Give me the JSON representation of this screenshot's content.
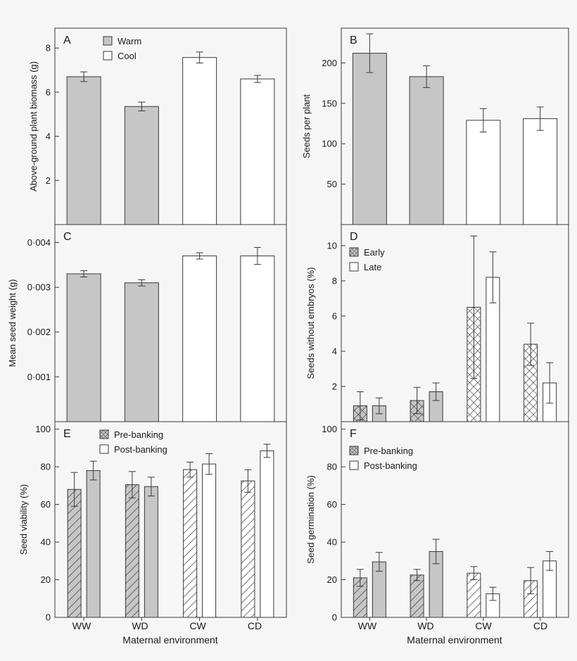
{
  "colors": {
    "gray": "#c6c6c6",
    "white": "#ffffff",
    "stroke": "#3a3a3a",
    "background": "#f6f6f6"
  },
  "x_axis": {
    "categories": [
      "WW",
      "WD",
      "CW",
      "CD"
    ],
    "label": "Maternal environment"
  },
  "chart_data": [
    {
      "id": "A",
      "type": "bar",
      "letter": "A",
      "ylabel": "Above-ground plant biomass (g)",
      "ylim": [
        0,
        8.9
      ],
      "yticks": [
        2,
        4,
        6,
        8
      ],
      "ytick_labels": [
        "2",
        "4",
        "6",
        "8"
      ],
      "legend": [
        {
          "label": "Warm",
          "style": "gray"
        },
        {
          "label": "Cool",
          "style": "white"
        }
      ],
      "categories": [
        "WW",
        "WD",
        "CW",
        "CD"
      ],
      "bars": [
        {
          "category": "WW",
          "value": 6.7,
          "err": 0.22,
          "style": "gray"
        },
        {
          "category": "WD",
          "value": 5.35,
          "err": 0.2,
          "style": "gray"
        },
        {
          "category": "CW",
          "value": 7.57,
          "err": 0.25,
          "style": "white"
        },
        {
          "category": "CD",
          "value": 6.6,
          "err": 0.16,
          "style": "white"
        }
      ]
    },
    {
      "id": "B",
      "type": "bar",
      "letter": "B",
      "ylabel": "Seeds per plant",
      "ylim": [
        0,
        243
      ],
      "yticks": [
        50,
        100,
        150,
        200
      ],
      "ytick_labels": [
        "50",
        "100",
        "150",
        "200"
      ],
      "legend": [],
      "categories": [
        "WW",
        "WD",
        "CW",
        "CD"
      ],
      "bars": [
        {
          "category": "WW",
          "value": 212,
          "err": 24,
          "style": "gray"
        },
        {
          "category": "WD",
          "value": 183,
          "err": 13.5,
          "style": "gray"
        },
        {
          "category": "CW",
          "value": 129,
          "err": 14.5,
          "style": "white"
        },
        {
          "category": "CD",
          "value": 131,
          "err": 14.5,
          "style": "white"
        }
      ]
    },
    {
      "id": "C",
      "type": "bar",
      "letter": "C",
      "ylabel": "Mean seed weight (g)",
      "ylim": [
        0,
        0.0044
      ],
      "yticks": [
        0.001,
        0.002,
        0.003,
        0.004
      ],
      "ytick_labels": [
        "0·001",
        "0·002",
        "0·003",
        "0·004"
      ],
      "legend": [],
      "categories": [
        "WW",
        "WD",
        "CW",
        "CD"
      ],
      "bars": [
        {
          "category": "WW",
          "value": 0.0033,
          "err": 7e-05,
          "style": "gray"
        },
        {
          "category": "WD",
          "value": 0.0031,
          "err": 7e-05,
          "style": "gray"
        },
        {
          "category": "CW",
          "value": 0.0037,
          "err": 7e-05,
          "style": "white"
        },
        {
          "category": "CD",
          "value": 0.0037,
          "err": 0.00019,
          "style": "white"
        }
      ]
    },
    {
      "id": "D",
      "type": "bar",
      "letter": "D",
      "ylabel": "Seeds without embryos (%)",
      "ylim": [
        0,
        11.2
      ],
      "yticks": [
        2,
        4,
        6,
        8,
        10
      ],
      "ytick_labels": [
        "2",
        "4",
        "6",
        "8",
        "10"
      ],
      "legend": [
        {
          "label": "Early",
          "style": "cross"
        },
        {
          "label": "Late",
          "style": "white"
        }
      ],
      "categories": [
        "WW",
        "WD",
        "CW",
        "CD"
      ],
      "bars": [
        {
          "category": "WW",
          "value": 0.9,
          "err": 0.8,
          "style": "cross-gray"
        },
        {
          "category": "WW",
          "value": 0.9,
          "err": 0.45,
          "style": "gray"
        },
        {
          "category": "WD",
          "value": 1.2,
          "err": 0.75,
          "style": "cross-gray"
        },
        {
          "category": "WD",
          "value": 1.7,
          "err": 0.5,
          "style": "gray"
        },
        {
          "category": "CW",
          "value": 6.5,
          "err": 4.05,
          "style": "cross-white"
        },
        {
          "category": "CW",
          "value": 8.2,
          "err": 1.45,
          "style": "white"
        },
        {
          "category": "CD",
          "value": 4.4,
          "err": 1.2,
          "style": "cross-white"
        },
        {
          "category": "CD",
          "value": 2.2,
          "err": 1.15,
          "style": "white"
        }
      ]
    },
    {
      "id": "E",
      "type": "bar",
      "letter": "E",
      "ylabel": "Seed viability (%)",
      "ylim": [
        0,
        104
      ],
      "yticks": [
        0,
        20,
        40,
        60,
        80,
        100
      ],
      "ytick_labels": [
        "0",
        "20",
        "40",
        "60",
        "80",
        "100"
      ],
      "legend": [
        {
          "label": "Pre-banking",
          "style": "cross"
        },
        {
          "label": "Post-banking",
          "style": "white"
        }
      ],
      "categories": [
        "WW",
        "WD",
        "CW",
        "CD"
      ],
      "bars": [
        {
          "category": "WW",
          "value": 68,
          "err": 9,
          "style": "hatch-gray"
        },
        {
          "category": "WW",
          "value": 78,
          "err": 5,
          "style": "gray"
        },
        {
          "category": "WD",
          "value": 70.5,
          "err": 7,
          "style": "hatch-gray"
        },
        {
          "category": "WD",
          "value": 69.5,
          "err": 5,
          "style": "gray"
        },
        {
          "category": "CW",
          "value": 78.5,
          "err": 4,
          "style": "hatch-white"
        },
        {
          "category": "CW",
          "value": 81.5,
          "err": 5.5,
          "style": "white"
        },
        {
          "category": "CD",
          "value": 72.5,
          "err": 6,
          "style": "hatch-white"
        },
        {
          "category": "CD",
          "value": 88.5,
          "err": 3.5,
          "style": "white"
        }
      ]
    },
    {
      "id": "F",
      "type": "bar",
      "letter": "F",
      "ylabel": "Seed germination (%)",
      "ylim": [
        0,
        104
      ],
      "yticks": [
        0,
        20,
        40,
        60,
        80,
        100
      ],
      "ytick_labels": [
        "0",
        "20",
        "40",
        "60",
        "80",
        "100"
      ],
      "legend": [
        {
          "label": "Pre-banking",
          "style": "cross"
        },
        {
          "label": "Post-banking",
          "style": "white"
        }
      ],
      "categories": [
        "WW",
        "WD",
        "CW",
        "CD"
      ],
      "bars": [
        {
          "category": "WW",
          "value": 21,
          "err": 4.5,
          "style": "hatch-gray"
        },
        {
          "category": "WW",
          "value": 29.5,
          "err": 5,
          "style": "gray"
        },
        {
          "category": "WD",
          "value": 22.5,
          "err": 3,
          "style": "hatch-gray"
        },
        {
          "category": "WD",
          "value": 35,
          "err": 6.5,
          "style": "gray"
        },
        {
          "category": "CW",
          "value": 23.5,
          "err": 3.5,
          "style": "hatch-white"
        },
        {
          "category": "CW",
          "value": 12.5,
          "err": 3.5,
          "style": "white"
        },
        {
          "category": "CD",
          "value": 19.5,
          "err": 7,
          "style": "hatch-white"
        },
        {
          "category": "CD",
          "value": 30,
          "err": 5,
          "style": "white"
        }
      ]
    }
  ]
}
